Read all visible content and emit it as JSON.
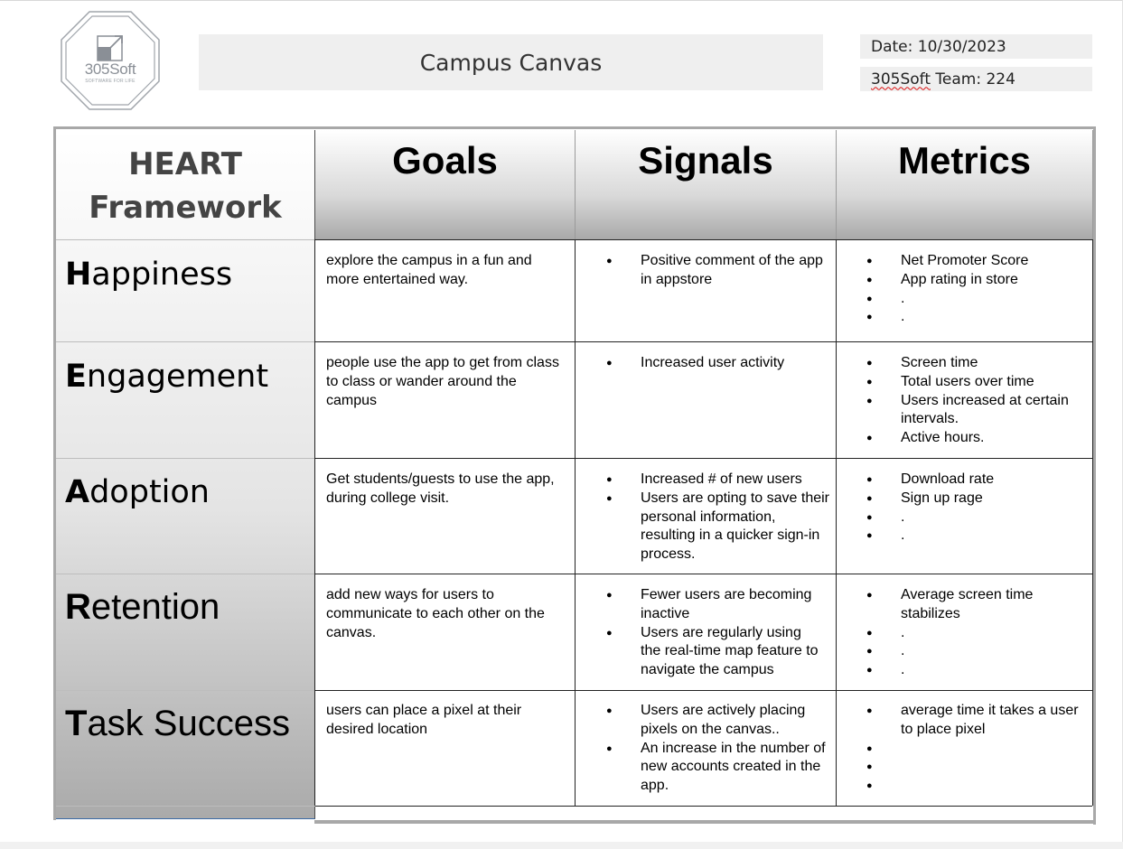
{
  "logo": {
    "name": "305Soft",
    "tagline": "SOFTWARE FOR LIFE"
  },
  "document": {
    "title": "Campus Canvas",
    "date_label": "Date: 10/30/2023",
    "team_prefix": "305Soft",
    "team_suffix": " Team: 224"
  },
  "table": {
    "heart_header": [
      "HEART",
      "Framework"
    ],
    "columns": [
      "Goals",
      "Signals",
      "Metrics"
    ],
    "rows": [
      {
        "initial": "H",
        "rest": "appiness",
        "goal": "explore the campus in a fun and more entertained way.",
        "signals": [
          "Positive comment of the app in appstore"
        ],
        "metrics": [
          "Net Promoter Score",
          "App rating in store",
          ".",
          "."
        ]
      },
      {
        "initial": "E",
        "rest": "ngagement",
        "goal": "people use the app to get from class to class or wander around the campus",
        "signals": [
          "Increased user activity"
        ],
        "metrics": [
          "Screen time",
          "Total users over time",
          "Users increased at certain intervals.",
          "Active hours."
        ]
      },
      {
        "initial": "A",
        "rest": "doption",
        "goal": "Get students/guests to use the app, during college visit.",
        "signals": [
          "Increased # of new users",
          "Users are opting to save their personal information, resulting in a quicker sign-in process."
        ],
        "metrics": [
          "Download rate",
          "Sign up rage",
          ".",
          "."
        ]
      },
      {
        "initial": "R",
        "rest": "etention",
        "goal": "add new ways for users to communicate to each other on the canvas.",
        "signals": [
          "Fewer users are becoming inactive",
          "Users are regularly using the real-time map feature to navigate the campus"
        ],
        "metrics": [
          "Average screen time stabilizes",
          ".",
          ".",
          "."
        ]
      },
      {
        "initial": "T",
        "rest": "ask Success",
        "goal": "users can place a pixel at their desired location",
        "signals": [
          "Users are actively placing pixels on the canvas..",
          "An increase in the number of new accounts created in the app."
        ],
        "metrics": [
          "average time it takes a user to place pixel",
          "",
          "",
          ""
        ]
      }
    ]
  }
}
